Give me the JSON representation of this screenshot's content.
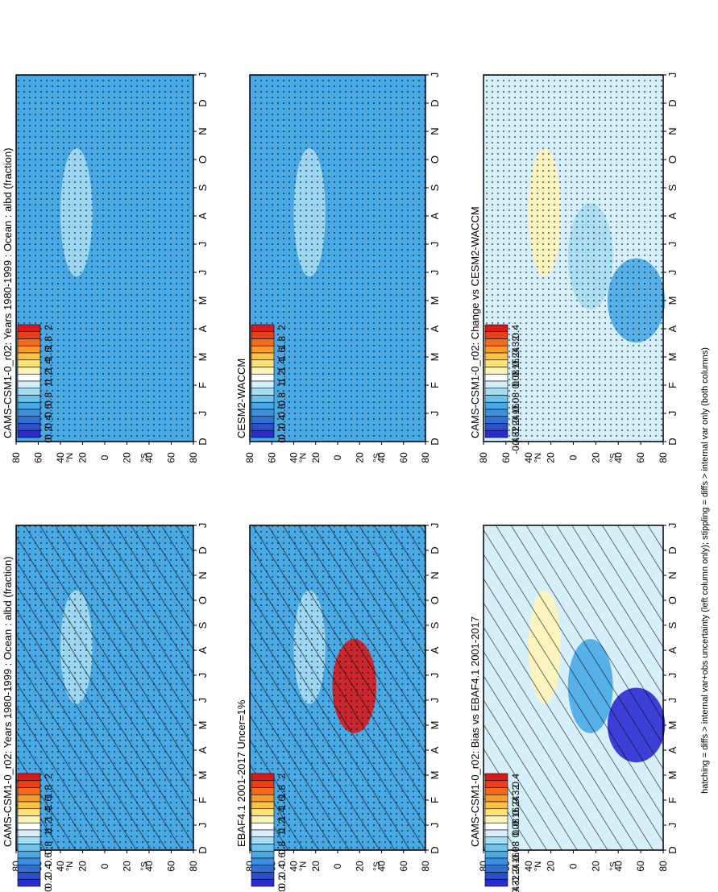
{
  "footnote": "hatching = diffs > internal var+obs uncertainty (left column only); stippling = diffs > internal var only (both columns)",
  "colorbars": {
    "absolute": {
      "labels": [
        "2",
        "1.8",
        "1.6",
        "1.4",
        "1.2",
        "1",
        "0.8",
        "0.6",
        "0.4",
        "0.2",
        "0"
      ],
      "colors": [
        "#d7191c",
        "#e8411a",
        "#f36b1f",
        "#f89a2c",
        "#fbc24a",
        "#fde27a",
        "#fff4b8",
        "#ffffff",
        "#d6f0fb",
        "#a7dcf3",
        "#6ec3ec",
        "#49a9e4",
        "#3b8fdc",
        "#316fd1",
        "#2b4fc6",
        "#2b2bd2"
      ]
    },
    "difference": {
      "labels": [
        "0.4",
        "0.32",
        "0.24",
        "0.16",
        "0.08",
        "0",
        "-0.08",
        "-0.16",
        "-0.24",
        "-0.32",
        "-0.4"
      ],
      "colors": [
        "#d7191c",
        "#e8411a",
        "#f36b1f",
        "#f89a2c",
        "#fbc24a",
        "#fde27a",
        "#fff4b8",
        "#ffffff",
        "#d6f0fb",
        "#a7dcf3",
        "#6ec3ec",
        "#49a9e4",
        "#3b8fdc",
        "#316fd1",
        "#2b4fc6",
        "#2b2bd2"
      ]
    }
  },
  "chart_data": [
    {
      "type": "heatmap",
      "panel": "left-top",
      "title": "CAMS-CSM1-0_r02: Years 1980-1999 : Ocean : albd (fraction)",
      "x_ticks": [
        "D",
        "J",
        "F",
        "M",
        "A",
        "M",
        "J",
        "J",
        "A",
        "S",
        "O",
        "N",
        "D",
        "J"
      ],
      "y_ticks": [
        "80",
        "60",
        "40",
        "20",
        "0",
        "20",
        "40",
        "60",
        "80"
      ],
      "y_hemisphere_labels": [
        "°N",
        "°S"
      ],
      "colorbar": "absolute",
      "hatching": true,
      "stippling": true,
      "dominant_values": [
        0.6,
        0.8
      ]
    },
    {
      "type": "heatmap",
      "panel": "right-top",
      "title": "CAMS-CSM1-0_r02: Years 1980-1999 : Ocean : albd (fraction)",
      "x_ticks": [
        "D",
        "J",
        "F",
        "M",
        "A",
        "M",
        "J",
        "J",
        "A",
        "S",
        "O",
        "N",
        "D",
        "J"
      ],
      "y_ticks": [
        "80",
        "60",
        "40",
        "20",
        "0",
        "20",
        "40",
        "60",
        "80"
      ],
      "y_hemisphere_labels": [
        "°N",
        "°S"
      ],
      "colorbar": "absolute",
      "hatching": false,
      "stippling": true,
      "dominant_values": [
        0.6,
        0.8
      ]
    },
    {
      "type": "heatmap",
      "panel": "left-middle",
      "title": "EBAF4.1 2001-2017 Uncer=1%",
      "x_ticks": [
        "D",
        "J",
        "F",
        "M",
        "A",
        "M",
        "J",
        "J",
        "A",
        "S",
        "O",
        "N",
        "D",
        "J"
      ],
      "y_ticks": [
        "80",
        "60",
        "40",
        "20",
        "0",
        "20",
        "40",
        "60",
        "80"
      ],
      "y_hemisphere_labels": [
        "°N",
        "°S"
      ],
      "colorbar": "absolute",
      "hatching": true,
      "stippling": true,
      "dominant_values": [
        0.6,
        0.8,
        2.0
      ]
    },
    {
      "type": "heatmap",
      "panel": "right-middle",
      "title": "CESM2-WACCM",
      "x_ticks": [
        "D",
        "J",
        "F",
        "M",
        "A",
        "M",
        "J",
        "J",
        "A",
        "S",
        "O",
        "N",
        "D",
        "J"
      ],
      "y_ticks": [
        "80",
        "60",
        "40",
        "20",
        "0",
        "20",
        "40",
        "60",
        "80"
      ],
      "y_hemisphere_labels": [
        "°N",
        "°S"
      ],
      "colorbar": "absolute",
      "hatching": false,
      "stippling": true,
      "dominant_values": [
        0.6,
        0.8
      ]
    },
    {
      "type": "heatmap",
      "panel": "left-bottom",
      "title": "CAMS-CSM1-0_r02: Bias vs EBAF4.1 2001-2017",
      "x_ticks": [
        "D",
        "J",
        "F",
        "M",
        "A",
        "M",
        "J",
        "J",
        "A",
        "S",
        "O",
        "N",
        "D",
        "J"
      ],
      "y_ticks": [
        "80",
        "60",
        "40",
        "20",
        "0",
        "20",
        "40",
        "60",
        "80"
      ],
      "y_hemisphere_labels": [
        "°N",
        "°S"
      ],
      "colorbar": "difference",
      "hatching": true,
      "stippling": false,
      "dominant_values": [
        0,
        0.08,
        -0.16,
        -0.4
      ]
    },
    {
      "type": "heatmap",
      "panel": "right-bottom",
      "title": "CAMS-CSM1-0_r02: Change vs CESM2-WACCM",
      "x_ticks": [
        "D",
        "J",
        "F",
        "M",
        "A",
        "M",
        "J",
        "J",
        "A",
        "S",
        "O",
        "N",
        "D",
        "J"
      ],
      "y_ticks": [
        "80",
        "60",
        "40",
        "20",
        "0",
        "20",
        "40",
        "60",
        "80"
      ],
      "y_hemisphere_labels": [
        "°N",
        "°S"
      ],
      "colorbar": "difference",
      "hatching": false,
      "stippling": true,
      "dominant_values": [
        0,
        0.08,
        -0.08,
        -0.16
      ]
    }
  ]
}
